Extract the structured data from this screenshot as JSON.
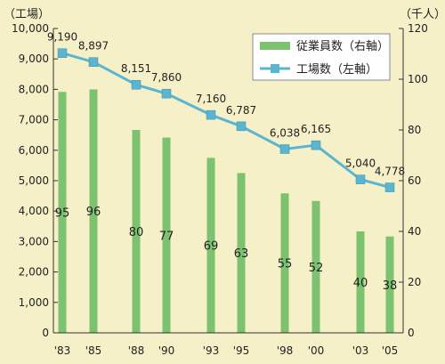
{
  "chart_data": {
    "type": "bar+line",
    "categories": [
      "'83",
      "'85",
      "'88",
      "'90",
      "'93",
      "'95",
      "'98",
      "'00",
      "'03",
      "'05"
    ],
    "left_axis_unit": "（工場）",
    "right_axis_unit": "（千人）",
    "left_ylim": [
      0,
      10000
    ],
    "right_ylim": [
      0,
      120
    ],
    "left_ticks": [
      "0",
      "1,000",
      "2,000",
      "3,000",
      "4,000",
      "5,000",
      "6,000",
      "7,000",
      "8,000",
      "9,000",
      "10,000"
    ],
    "right_ticks": [
      "0",
      "20",
      "40",
      "60",
      "80",
      "100",
      "120"
    ],
    "series": [
      {
        "name": "従業員数（右軸）",
        "type": "bar",
        "axis": "right",
        "values": [
          95,
          96,
          80,
          77,
          69,
          63,
          55,
          52,
          40,
          38
        ],
        "labels": [
          "95",
          "96",
          "80",
          "77",
          "69",
          "63",
          "55",
          "52",
          "40",
          "38"
        ],
        "color": "#7cc26f"
      },
      {
        "name": "工場数（左軸）",
        "type": "line",
        "axis": "left",
        "values": [
          9190,
          8897,
          8151,
          7860,
          7160,
          6787,
          6038,
          6165,
          5040,
          4778
        ],
        "labels": [
          "9,190",
          "8,897",
          "8,151",
          "7,860",
          "7,160",
          "6,787",
          "6,038",
          "6,165",
          "5,040",
          "4,778"
        ],
        "color": "#5bb5d0"
      }
    ],
    "legend_position": "top-right",
    "grid": false
  }
}
